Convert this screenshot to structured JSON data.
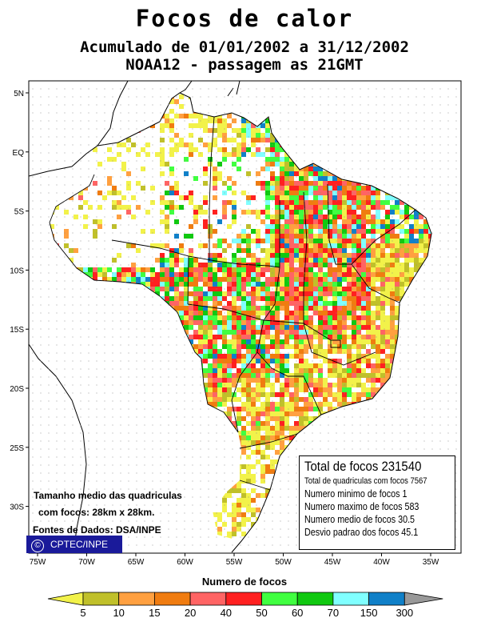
{
  "title": "Focos de calor",
  "subtitle": "Acumulado de 01/01/2002 a 31/12/2002",
  "satellite_line": "NOAA12 - passagem as 21GMT",
  "lat_labels": [
    "5N",
    "EQ",
    "5S",
    "10S",
    "15S",
    "20S",
    "25S",
    "30S"
  ],
  "lon_labels": [
    "75W",
    "70W",
    "65W",
    "60W",
    "55W",
    "50W",
    "45W",
    "40W",
    "35W"
  ],
  "stats": {
    "total": "Total de focos 231540",
    "quadriculas": "Total de quadriculas com focos 7567",
    "minimo": "Numero minimo de focos 1",
    "maximo": "Numero maximo de focos 583",
    "medio": "Numero medio de focos 30.5",
    "desvio": "Desvio padrao dos focos 45.1"
  },
  "notes": {
    "line1": "Tamanho medio das quadriculas",
    "line2": "com focos: 28km x 28km.",
    "line3": "Fontes de Dados: DSA/INPE"
  },
  "credit": "CPTEC/INPE",
  "credit_symbol": "©",
  "legend": {
    "title": "Numero de focos",
    "labels": [
      "5",
      "10",
      "15",
      "20",
      "40",
      "50",
      "60",
      "70",
      "150",
      "300"
    ],
    "colors": [
      "#f2f24a",
      "#c0c02a",
      "#ffa040",
      "#f07c10",
      "#ff6464",
      "#ff2020",
      "#40ff40",
      "#10c810",
      "#80ffff",
      "#1080c8",
      "#999999"
    ]
  }
}
